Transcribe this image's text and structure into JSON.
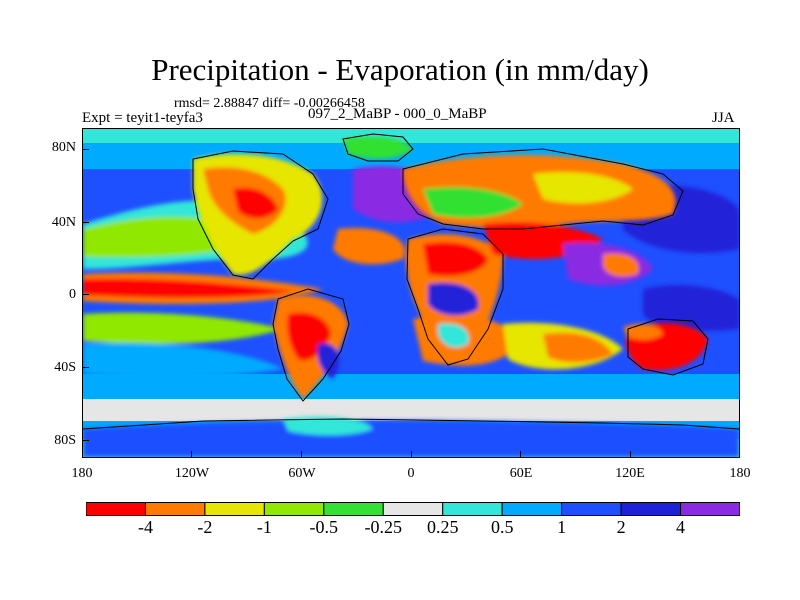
{
  "title": "Precipitation - Evaporation (in mm/day)",
  "stats": "rmsd= 2.88847 diff= -0.00266458",
  "experiment": "Expt = teyit1-teyfa3",
  "period": "097_2_MaBP - 000_0_MaBP",
  "season": "JJA",
  "y_axis_labels": [
    "80N",
    "40N",
    "0",
    "40S",
    "80S"
  ],
  "x_axis_labels": [
    "180",
    "120W",
    "60W",
    "0",
    "60E",
    "120E",
    "180"
  ],
  "colorbar": {
    "colors": [
      "#ff0000",
      "#ff7a00",
      "#e6e600",
      "#90e800",
      "#33e033",
      "#e6e6e6",
      "#33e6d9",
      "#00aaff",
      "#1e50ff",
      "#2020d8",
      "#8a2be2"
    ],
    "labels": [
      "-4",
      "-2",
      "-1",
      "-0.5",
      "-0.25",
      "0.25",
      "0.5",
      "1",
      "2",
      "4"
    ]
  }
}
